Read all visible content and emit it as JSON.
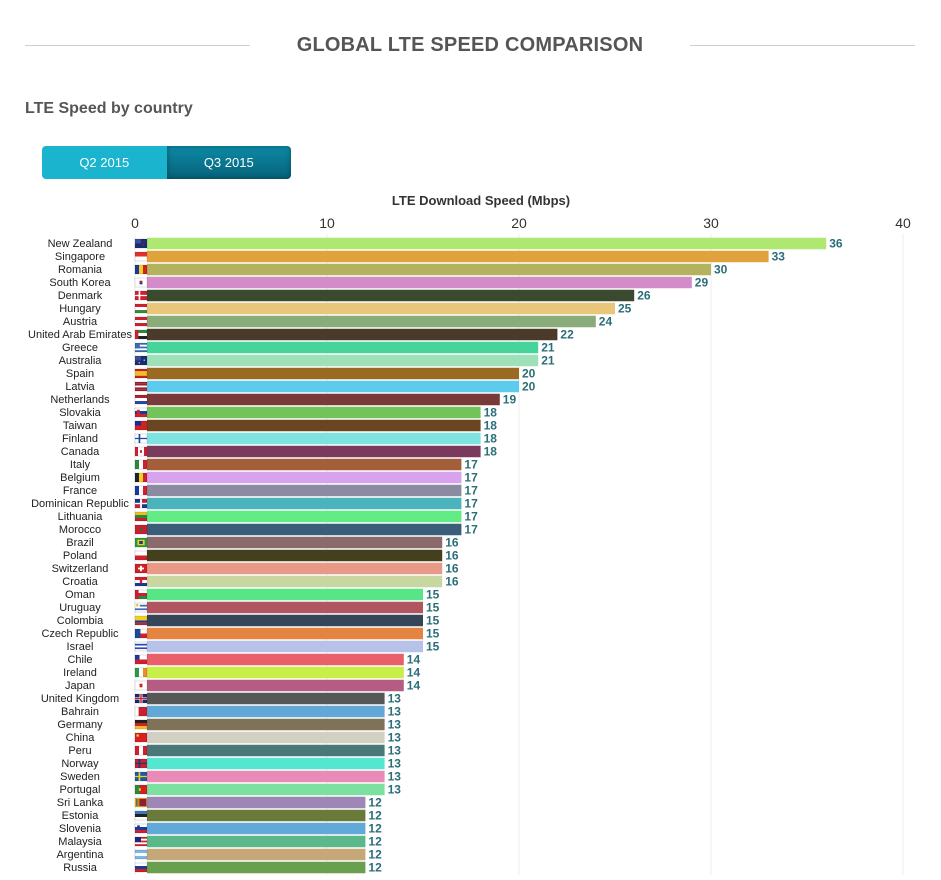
{
  "page": {
    "title": "GLOBAL LTE SPEED COMPARISON",
    "section_title": "LTE Speed by country"
  },
  "tabs": [
    {
      "label": "Q2 2015",
      "active": false
    },
    {
      "label": "Q3 2015",
      "active": true
    }
  ],
  "chart_data": {
    "type": "bar",
    "orientation": "horizontal",
    "title": "LTE Download Speed (Mbps)",
    "xlim": [
      0,
      40
    ],
    "ticks": [
      "0",
      "10",
      "20",
      "30",
      "40"
    ],
    "grid": true,
    "categories": [
      "New Zealand",
      "Singapore",
      "Romania",
      "South Korea",
      "Denmark",
      "Hungary",
      "Austria",
      "United Arab Emirates",
      "Greece",
      "Australia",
      "Spain",
      "Latvia",
      "Netherlands",
      "Slovakia",
      "Taiwan",
      "Finland",
      "Canada",
      "Italy",
      "Belgium",
      "France",
      "Dominican Republic",
      "Lithuania",
      "Morocco",
      "Brazil",
      "Poland",
      "Switzerland",
      "Croatia",
      "Oman",
      "Uruguay",
      "Colombia",
      "Czech Republic",
      "Israel",
      "Chile",
      "Ireland",
      "Japan",
      "United Kingdom",
      "Bahrain",
      "Germany",
      "China",
      "Peru",
      "Norway",
      "Sweden",
      "Portugal",
      "Sri Lanka",
      "Estonia",
      "Slovenia",
      "Malaysia",
      "Argentina",
      "Russia"
    ],
    "values": [
      36,
      33,
      30,
      29,
      26,
      25,
      24,
      22,
      21,
      21,
      20,
      20,
      19,
      18,
      18,
      18,
      18,
      17,
      17,
      17,
      17,
      17,
      17,
      16,
      16,
      16,
      16,
      15,
      15,
      15,
      15,
      15,
      14,
      14,
      14,
      13,
      13,
      13,
      13,
      13,
      13,
      13,
      13,
      12,
      12,
      12,
      12,
      12,
      12
    ],
    "colors": [
      "#aee871",
      "#e0a23d",
      "#b2b35c",
      "#d48cc8",
      "#3a4a2f",
      "#e8c77a",
      "#8aab7a",
      "#4a3a2a",
      "#46d49a",
      "#9ee0b8",
      "#9a6a22",
      "#5dcbec",
      "#7a3a3a",
      "#72c45a",
      "#6a4520",
      "#7ee3e0",
      "#7a3a5e",
      "#a35e3a",
      "#d8a3ee",
      "#8a8aa0",
      "#4ab3bb",
      "#62ec86",
      "#3a5e7a",
      "#8a6a6a",
      "#44401e",
      "#e89a86",
      "#c8d6a0",
      "#56e685",
      "#b15660",
      "#354658",
      "#e48440",
      "#b6c2e8",
      "#e8606a",
      "#c8ee48",
      "#b45c82",
      "#575757",
      "#62a8d6",
      "#7e7258",
      "#d2d0c2",
      "#4a7878",
      "#55e6d0",
      "#e98bb6",
      "#7ce0a0",
      "#9e86b6",
      "#6a7a3a",
      "#62a8d8",
      "#5ab88a",
      "#c6a878",
      "#68a04e"
    ],
    "flags": [
      "nz",
      "sg",
      "ro",
      "kr",
      "dk",
      "hu",
      "at",
      "ae",
      "gr",
      "au",
      "es",
      "lv",
      "nl",
      "sk",
      "tw",
      "fi",
      "ca",
      "it",
      "be",
      "fr",
      "do",
      "lt",
      "ma",
      "br",
      "pl",
      "ch",
      "hr",
      "om",
      "uy",
      "co",
      "cz",
      "il",
      "cl",
      "ie",
      "jp",
      "gb",
      "bh",
      "de",
      "cn",
      "pe",
      "no",
      "se",
      "pt",
      "lk",
      "ee",
      "si",
      "my",
      "ar",
      "ru"
    ],
    "value_label_color": "#2a6e78"
  }
}
